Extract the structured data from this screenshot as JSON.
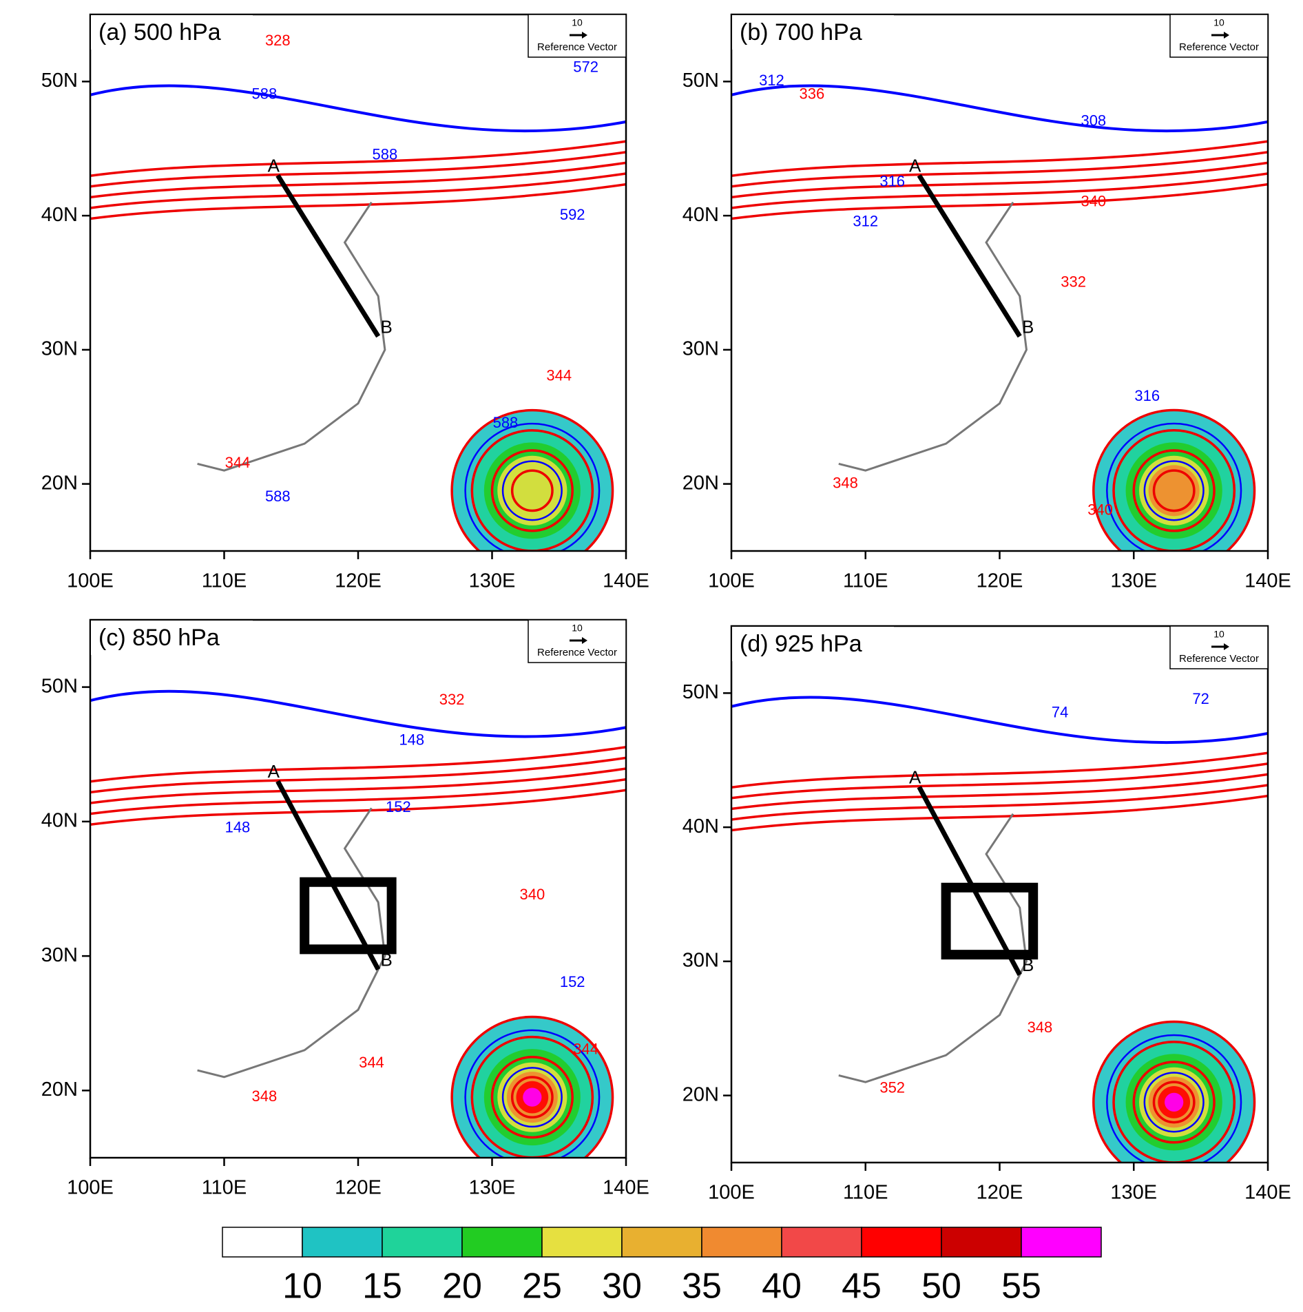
{
  "figure": {
    "lon_range": [
      100,
      140
    ],
    "lat_range": [
      15,
      55
    ],
    "lon_ticks": [
      {
        "value": 100,
        "label": "100E"
      },
      {
        "value": 110,
        "label": "110E"
      },
      {
        "value": 120,
        "label": "120E"
      },
      {
        "value": 130,
        "label": "130E"
      },
      {
        "value": 140,
        "label": "140E"
      }
    ],
    "lat_ticks": [
      {
        "value": 20,
        "label": "20N"
      },
      {
        "value": 30,
        "label": "30N"
      },
      {
        "value": 40,
        "label": "40N"
      },
      {
        "value": 50,
        "label": "50N"
      }
    ],
    "reference_vector": {
      "value": 10,
      "label": "Reference Vector"
    },
    "panels": [
      {
        "title": "(a) 500 hPa",
        "section": [
          {
            "label": "A",
            "lon": 114,
            "lat": 43
          },
          {
            "label": "B",
            "lon": 121.5,
            "lat": 31
          }
        ],
        "contour_labels": [
          {
            "value": 588,
            "lon": 113,
            "lat": 49,
            "color": "#0000ff"
          },
          {
            "value": 572,
            "lon": 137,
            "lat": 51,
            "color": "#0000ff"
          },
          {
            "value": 588,
            "lon": 122,
            "lat": 44.5,
            "color": "#0000ff"
          },
          {
            "value": 592,
            "lon": 136,
            "lat": 40,
            "color": "#0000ff"
          },
          {
            "value": 588,
            "lon": 131,
            "lat": 24.5,
            "color": "#0000ff"
          },
          {
            "value": 588,
            "lon": 114,
            "lat": 19,
            "color": "#0000ff"
          },
          {
            "value": 344,
            "lon": 135,
            "lat": 28,
            "color": "#ff0000"
          },
          {
            "value": 344,
            "lon": 111,
            "lat": 21.5,
            "color": "#ff0000"
          },
          {
            "value": 328,
            "lon": 114,
            "lat": 53,
            "color": "#ff0000"
          }
        ]
      },
      {
        "title": "(b) 700 hPa",
        "section": [
          {
            "label": "A",
            "lon": 114,
            "lat": 43
          },
          {
            "label": "B",
            "lon": 121.5,
            "lat": 31
          }
        ],
        "contour_labels": [
          {
            "value": 312,
            "lon": 103,
            "lat": 50,
            "color": "#0000ff"
          },
          {
            "value": 308,
            "lon": 127,
            "lat": 47,
            "color": "#0000ff"
          },
          {
            "value": 316,
            "lon": 112,
            "lat": 42.5,
            "color": "#0000ff"
          },
          {
            "value": 312,
            "lon": 110,
            "lat": 39.5,
            "color": "#0000ff"
          },
          {
            "value": 316,
            "lon": 131,
            "lat": 26.5,
            "color": "#0000ff"
          },
          {
            "value": 336,
            "lon": 106,
            "lat": 49,
            "color": "#ff0000"
          },
          {
            "value": 340,
            "lon": 127,
            "lat": 41,
            "color": "#ff0000"
          },
          {
            "value": 332,
            "lon": 125.5,
            "lat": 35,
            "color": "#ff0000"
          },
          {
            "value": 340,
            "lon": 127.5,
            "lat": 18,
            "color": "#ff0000"
          },
          {
            "value": 348,
            "lon": 108.5,
            "lat": 20,
            "color": "#ff0000"
          }
        ]
      },
      {
        "title": "(c) 850 hPa",
        "section": [
          {
            "label": "A",
            "lon": 114,
            "lat": 43
          },
          {
            "label": "B",
            "lon": 121.5,
            "lat": 29
          }
        ],
        "box": {
          "lon": [
            116,
            122.5
          ],
          "lat": [
            30.5,
            35.5
          ]
        },
        "contour_labels": [
          {
            "value": 148,
            "lon": 124,
            "lat": 46,
            "color": "#0000ff"
          },
          {
            "value": 152,
            "lon": 123,
            "lat": 41,
            "color": "#0000ff"
          },
          {
            "value": 148,
            "lon": 111,
            "lat": 39.5,
            "color": "#0000ff"
          },
          {
            "value": 152,
            "lon": 136,
            "lat": 28,
            "color": "#0000ff"
          },
          {
            "value": 332,
            "lon": 127,
            "lat": 49,
            "color": "#ff0000"
          },
          {
            "value": 340,
            "lon": 133,
            "lat": 34.5,
            "color": "#ff0000"
          },
          {
            "value": 344,
            "lon": 121,
            "lat": 22,
            "color": "#ff0000"
          },
          {
            "value": 348,
            "lon": 113,
            "lat": 19.5,
            "color": "#ff0000"
          },
          {
            "value": 344,
            "lon": 137,
            "lat": 23,
            "color": "#ff0000"
          }
        ]
      },
      {
        "title": "(d) 925 hPa",
        "section": [
          {
            "label": "A",
            "lon": 114,
            "lat": 43
          },
          {
            "label": "B",
            "lon": 121.5,
            "lat": 29
          }
        ],
        "box": {
          "lon": [
            116,
            122.5
          ],
          "lat": [
            30.5,
            35.5
          ]
        },
        "contour_labels": [
          {
            "value": 74,
            "lon": 124.5,
            "lat": 48.5,
            "color": "#0000ff"
          },
          {
            "value": 72,
            "lon": 135,
            "lat": 49.5,
            "color": "#0000ff"
          },
          {
            "value": 348,
            "lon": 123,
            "lat": 25,
            "color": "#ff0000"
          },
          {
            "value": 352,
            "lon": 112,
            "lat": 20.5,
            "color": "#ff0000"
          }
        ]
      }
    ],
    "colorbar": {
      "levels": [
        10,
        15,
        20,
        25,
        30,
        35,
        40,
        45,
        50,
        55
      ],
      "colors": [
        "#ffffff",
        "#1fc3c3",
        "#1fd39a",
        "#22cc22",
        "#e6e040",
        "#e8b030",
        "#f08a30",
        "#f24848",
        "#ff0000",
        "#cc0000",
        "#ff00ff"
      ]
    }
  }
}
